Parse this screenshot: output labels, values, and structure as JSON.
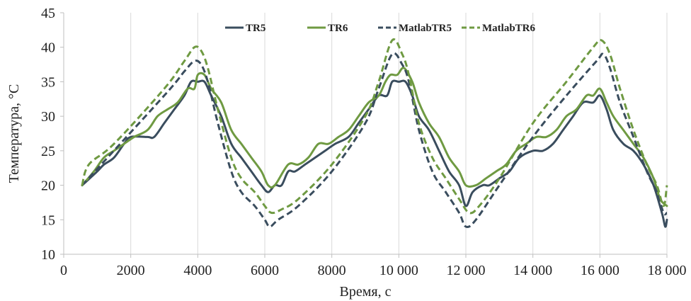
{
  "chart_data": {
    "type": "line",
    "xlabel": "Время, с",
    "ylabel": "Температура, °C",
    "xlim": [
      0,
      18000
    ],
    "ylim": [
      10,
      45
    ],
    "xticks": [
      0,
      2000,
      4000,
      6000,
      8000,
      10000,
      12000,
      14000,
      16000,
      18000
    ],
    "xtick_labels": [
      "0",
      "2000",
      "4000",
      "6000",
      "8000",
      "10 000",
      "12 000",
      "14 000",
      "16 000",
      "18 000"
    ],
    "yticks": [
      10,
      15,
      20,
      25,
      30,
      35,
      40,
      45
    ],
    "ytick_labels": [
      "10",
      "15",
      "20",
      "25",
      "30",
      "35",
      "40",
      "45"
    ],
    "grid": "vertical",
    "legend_position": "top",
    "series": [
      {
        "name": "TR5",
        "color": "#3a4d5e",
        "dash": "solid",
        "points": [
          [
            550,
            20
          ],
          [
            1000,
            22
          ],
          [
            1200,
            23
          ],
          [
            1500,
            24
          ],
          [
            1800,
            26
          ],
          [
            2000,
            27
          ],
          [
            2500,
            27
          ],
          [
            2700,
            27
          ],
          [
            3000,
            29
          ],
          [
            3300,
            31
          ],
          [
            3600,
            33
          ],
          [
            3800,
            35
          ],
          [
            4000,
            35
          ],
          [
            4200,
            35
          ],
          [
            4400,
            33
          ],
          [
            4700,
            30
          ],
          [
            5000,
            26
          ],
          [
            5300,
            24
          ],
          [
            5600,
            22
          ],
          [
            5900,
            20
          ],
          [
            6100,
            19
          ],
          [
            6300,
            20
          ],
          [
            6500,
            20
          ],
          [
            6700,
            22
          ],
          [
            6900,
            22
          ],
          [
            7200,
            23
          ],
          [
            7500,
            24
          ],
          [
            7800,
            25
          ],
          [
            8100,
            26
          ],
          [
            8500,
            27
          ],
          [
            8800,
            29
          ],
          [
            9100,
            31
          ],
          [
            9400,
            33
          ],
          [
            9650,
            33
          ],
          [
            9800,
            35
          ],
          [
            10000,
            35
          ],
          [
            10200,
            35
          ],
          [
            10400,
            33
          ],
          [
            10600,
            30
          ],
          [
            10900,
            28
          ],
          [
            11200,
            25
          ],
          [
            11500,
            22
          ],
          [
            11800,
            20
          ],
          [
            12000,
            17
          ],
          [
            12200,
            19
          ],
          [
            12500,
            20
          ],
          [
            12700,
            20
          ],
          [
            13000,
            21
          ],
          [
            13300,
            22
          ],
          [
            13600,
            24
          ],
          [
            14000,
            25
          ],
          [
            14300,
            25
          ],
          [
            14600,
            26
          ],
          [
            14900,
            28
          ],
          [
            15200,
            30
          ],
          [
            15500,
            32
          ],
          [
            15800,
            32
          ],
          [
            16000,
            33
          ],
          [
            16200,
            31
          ],
          [
            16400,
            28
          ],
          [
            16700,
            26
          ],
          [
            17000,
            25
          ],
          [
            17300,
            23
          ],
          [
            17600,
            20
          ],
          [
            17850,
            16
          ],
          [
            17950,
            14
          ],
          [
            18000,
            15
          ]
        ]
      },
      {
        "name": "TR6",
        "color": "#6f9a42",
        "dash": "solid",
        "points": [
          [
            550,
            20
          ],
          [
            900,
            22
          ],
          [
            1200,
            24
          ],
          [
            1500,
            25
          ],
          [
            1800,
            26
          ],
          [
            2100,
            27
          ],
          [
            2500,
            28
          ],
          [
            2800,
            30
          ],
          [
            3100,
            31
          ],
          [
            3400,
            32
          ],
          [
            3700,
            34
          ],
          [
            3900,
            34
          ],
          [
            4000,
            36
          ],
          [
            4200,
            36
          ],
          [
            4400,
            34
          ],
          [
            4700,
            32
          ],
          [
            5000,
            28
          ],
          [
            5300,
            26
          ],
          [
            5600,
            24
          ],
          [
            5900,
            22
          ],
          [
            6100,
            20
          ],
          [
            6300,
            20
          ],
          [
            6700,
            23
          ],
          [
            7000,
            23
          ],
          [
            7300,
            24
          ],
          [
            7600,
            26
          ],
          [
            7900,
            26
          ],
          [
            8200,
            27
          ],
          [
            8500,
            28
          ],
          [
            8800,
            30
          ],
          [
            9100,
            32
          ],
          [
            9400,
            33
          ],
          [
            9600,
            35
          ],
          [
            9750,
            36
          ],
          [
            9950,
            36
          ],
          [
            10150,
            37
          ],
          [
            10400,
            35
          ],
          [
            10600,
            32
          ],
          [
            10900,
            29
          ],
          [
            11200,
            27
          ],
          [
            11500,
            24
          ],
          [
            11800,
            22
          ],
          [
            12000,
            20
          ],
          [
            12300,
            20
          ],
          [
            12600,
            21
          ],
          [
            12900,
            22
          ],
          [
            13200,
            23
          ],
          [
            13500,
            25
          ],
          [
            13800,
            26
          ],
          [
            14100,
            27
          ],
          [
            14400,
            27
          ],
          [
            14700,
            28
          ],
          [
            15000,
            30
          ],
          [
            15300,
            31
          ],
          [
            15600,
            33
          ],
          [
            15800,
            33
          ],
          [
            16000,
            34
          ],
          [
            16200,
            32
          ],
          [
            16400,
            30
          ],
          [
            16700,
            28
          ],
          [
            17000,
            26
          ],
          [
            17300,
            24
          ],
          [
            17600,
            21
          ],
          [
            17800,
            18
          ],
          [
            18000,
            17
          ]
        ]
      },
      {
        "name": "MatlabTR5",
        "color": "#3a4d5e",
        "dash": "dashed",
        "points": [
          [
            550,
            20
          ],
          [
            3000,
            33
          ],
          [
            3600,
            36.5
          ],
          [
            3900,
            38
          ],
          [
            4100,
            37.5
          ],
          [
            4300,
            35
          ],
          [
            4600,
            29
          ],
          [
            5000,
            22
          ],
          [
            5300,
            19
          ],
          [
            5700,
            17
          ],
          [
            6000,
            15
          ],
          [
            6150,
            14
          ],
          [
            6400,
            15
          ],
          [
            7000,
            17
          ],
          [
            8000,
            22
          ],
          [
            9000,
            29
          ],
          [
            9400,
            34
          ],
          [
            9800,
            39
          ],
          [
            10100,
            37.5
          ],
          [
            10300,
            35
          ],
          [
            10600,
            28
          ],
          [
            11000,
            22
          ],
          [
            11400,
            19
          ],
          [
            11800,
            16
          ],
          [
            12000,
            14
          ],
          [
            12300,
            15
          ],
          [
            13000,
            20
          ],
          [
            14000,
            27
          ],
          [
            15000,
            33
          ],
          [
            15900,
            38
          ],
          [
            16100,
            39
          ],
          [
            16300,
            37
          ],
          [
            16600,
            32
          ],
          [
            17000,
            27
          ],
          [
            17400,
            22
          ],
          [
            17700,
            19
          ],
          [
            17900,
            16
          ],
          [
            18000,
            16
          ]
        ]
      },
      {
        "name": "MatlabTR6",
        "color": "#6f9a42",
        "dash": "dashed",
        "points": [
          [
            550,
            20
          ],
          [
            750,
            23
          ],
          [
            1500,
            26
          ],
          [
            3000,
            34
          ],
          [
            3600,
            38
          ],
          [
            3900,
            40
          ],
          [
            4100,
            39.5
          ],
          [
            4300,
            37
          ],
          [
            4600,
            31
          ],
          [
            5000,
            24
          ],
          [
            5300,
            21
          ],
          [
            5700,
            19
          ],
          [
            6000,
            17
          ],
          [
            6200,
            16
          ],
          [
            6500,
            16.5
          ],
          [
            7000,
            18
          ],
          [
            8000,
            23
          ],
          [
            9000,
            30
          ],
          [
            9400,
            35
          ],
          [
            9800,
            41
          ],
          [
            10100,
            39
          ],
          [
            10300,
            36
          ],
          [
            10600,
            29
          ],
          [
            11000,
            24
          ],
          [
            11400,
            21
          ],
          [
            11800,
            18
          ],
          [
            12100,
            16
          ],
          [
            12400,
            17
          ],
          [
            13000,
            21
          ],
          [
            14000,
            29
          ],
          [
            15000,
            35
          ],
          [
            15800,
            40
          ],
          [
            16050,
            41
          ],
          [
            16300,
            39
          ],
          [
            16600,
            34
          ],
          [
            17000,
            28
          ],
          [
            17400,
            23
          ],
          [
            17700,
            20
          ],
          [
            17900,
            17
          ],
          [
            18000,
            20
          ]
        ]
      }
    ]
  }
}
